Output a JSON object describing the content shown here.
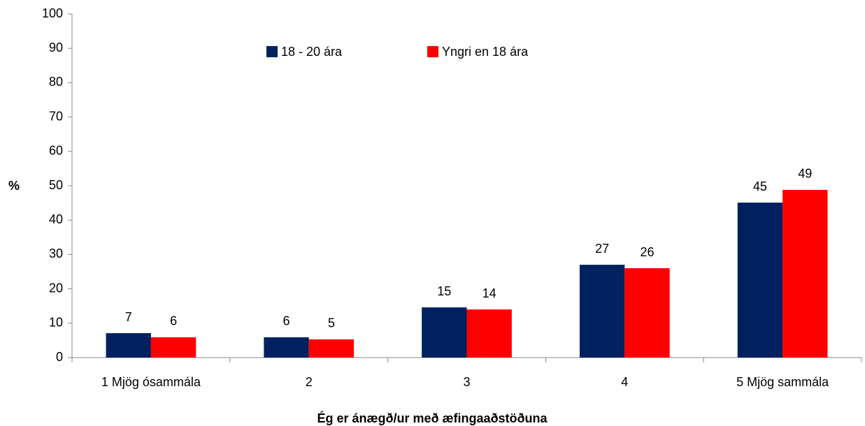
{
  "chart_data": {
    "type": "bar",
    "x_label": "Ég er ánægð/ur með æfingaaðstöðuna",
    "y_label": "%",
    "categories": [
      "1 Mjög ósammála",
      "2",
      "3",
      "4",
      "5 Mjög sammála"
    ],
    "series": [
      {
        "name": "18 - 20 ára",
        "color": "#002060",
        "values": [
          7.1,
          5.9,
          14.6,
          27.0,
          45.1
        ],
        "value_labels": [
          "7",
          "6",
          "15",
          "27",
          "45"
        ]
      },
      {
        "name": "Yngri en 18 ára",
        "color": "#ff0000",
        "values": [
          5.9,
          5.3,
          14.0,
          26.0,
          48.8
        ],
        "value_labels": [
          "6",
          "5",
          "14",
          "26",
          "49"
        ]
      }
    ],
    "ylim": [
      0,
      100
    ],
    "yticks": [
      0,
      10,
      20,
      30,
      40,
      50,
      60,
      70,
      80,
      90,
      100
    ],
    "legend": "top"
  }
}
